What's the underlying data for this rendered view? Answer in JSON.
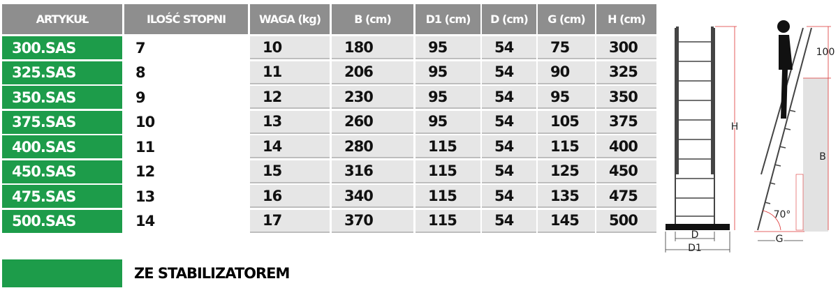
{
  "table": {
    "headers": [
      "ARTYKUŁ",
      "ILOŚĆ STOPNI",
      "WAGA (kg)",
      "B (cm)",
      "D1 (cm)",
      "D (cm)",
      "G (cm)",
      "H (cm)"
    ],
    "rows": [
      [
        "300.SAS",
        7,
        10,
        180,
        95,
        54,
        75,
        300
      ],
      [
        "325.SAS",
        8,
        11,
        206,
        95,
        54,
        90,
        325
      ],
      [
        "350.SAS",
        9,
        12,
        230,
        95,
        54,
        95,
        350
      ],
      [
        "375.SAS",
        10,
        13,
        260,
        95,
        54,
        105,
        375
      ],
      [
        "400.SAS",
        11,
        14,
        280,
        115,
        54,
        115,
        400
      ],
      [
        "450.SAS",
        12,
        15,
        316,
        115,
        54,
        125,
        450
      ],
      [
        "475.SAS",
        13,
        16,
        340,
        115,
        54,
        135,
        475
      ],
      [
        "500.SAS",
        14,
        17,
        370,
        115,
        54,
        145,
        500
      ]
    ]
  },
  "legend": {
    "label": "ZE STABILIZATOREM"
  },
  "diagram": {
    "labels": {
      "d": "D",
      "d1": "D1",
      "h": "H",
      "b": "B",
      "g": "G",
      "top": "100",
      "angle": "70°"
    }
  }
}
